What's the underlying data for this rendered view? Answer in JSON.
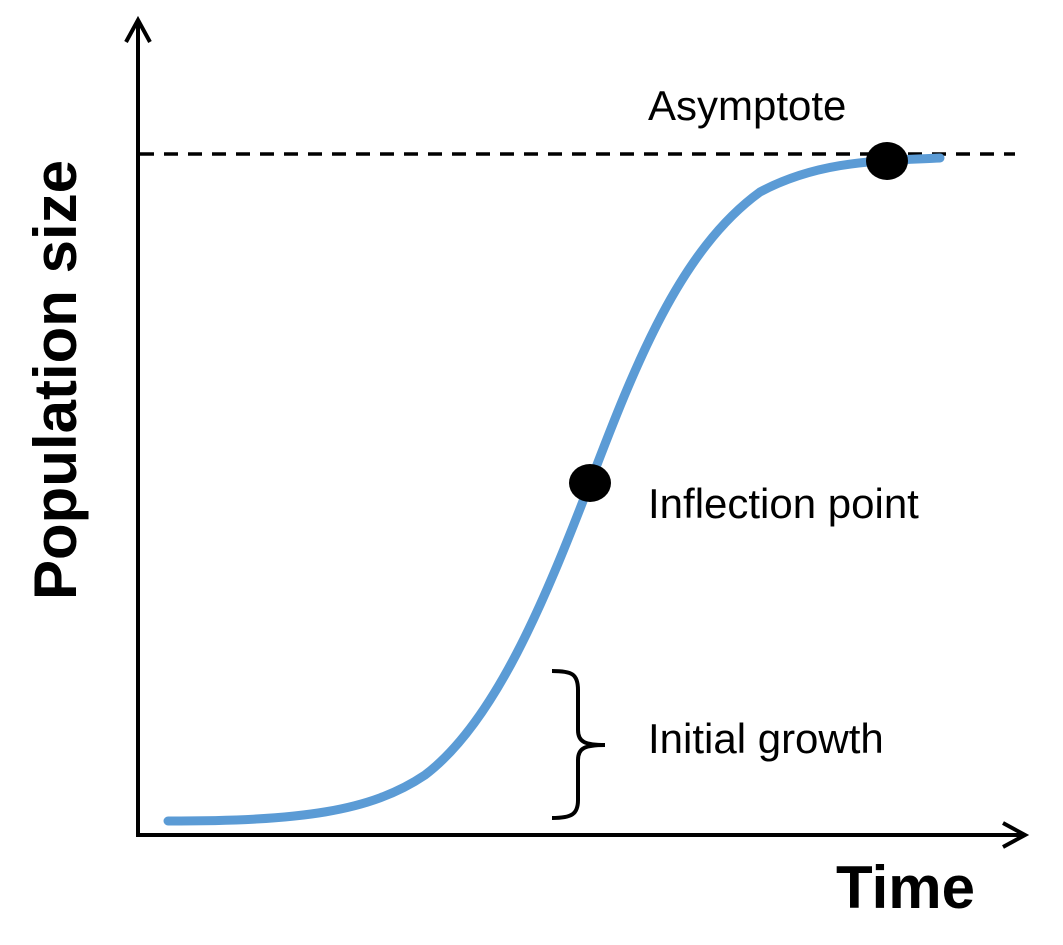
{
  "axes": {
    "y_label": "Population size",
    "x_label": "Time"
  },
  "annotations": {
    "asymptote": "Asymptote",
    "inflection_point": "Inflection point",
    "initial_growth": "Initial growth"
  }
}
